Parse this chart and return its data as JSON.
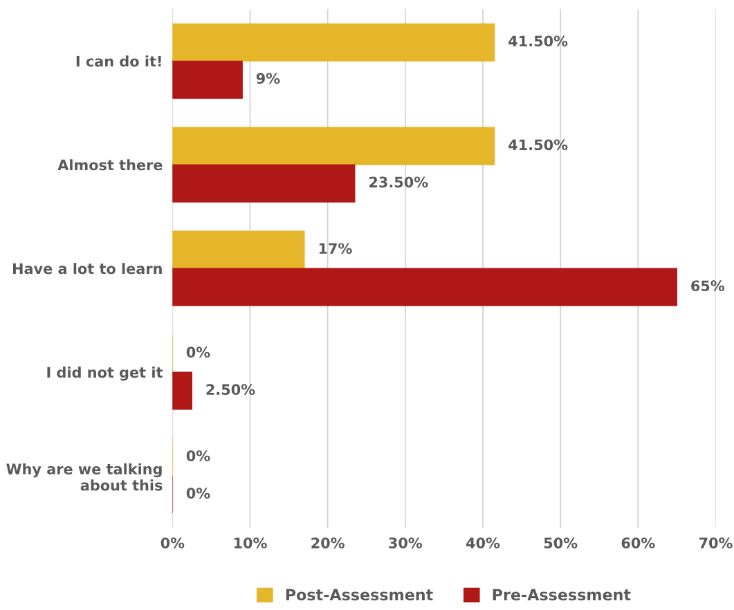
{
  "chart_data": {
    "type": "bar",
    "orientation": "horizontal",
    "categories": [
      "I can do it!",
      "Almost there",
      "Have a lot to learn",
      "I did not get it",
      "Why are we talking\nabout this"
    ],
    "series": [
      {
        "name": "Post-Assessment",
        "color": "#e6b62a",
        "values": [
          41.5,
          41.5,
          17,
          0,
          0
        ],
        "value_labels": [
          "41.50%",
          "41.50%",
          "17%",
          "0%",
          "0%"
        ]
      },
      {
        "name": "Pre-Assessment",
        "color": "#b01717",
        "values": [
          9,
          23.5,
          65,
          2.5,
          0
        ],
        "value_labels": [
          "9%",
          "23.50%",
          "65%",
          "2.50%",
          "0%"
        ]
      }
    ],
    "xlim": [
      0,
      70
    ],
    "xticks": [
      {
        "value": 0,
        "label": "0%"
      },
      {
        "value": 10,
        "label": "10%"
      },
      {
        "value": 20,
        "label": "20%"
      },
      {
        "value": 30,
        "label": "30%"
      },
      {
        "value": 40,
        "label": "40%"
      },
      {
        "value": 50,
        "label": "50%"
      },
      {
        "value": 60,
        "label": "60%"
      },
      {
        "value": 70,
        "label": "70%"
      }
    ],
    "grid": "x",
    "legend": "bottom"
  }
}
